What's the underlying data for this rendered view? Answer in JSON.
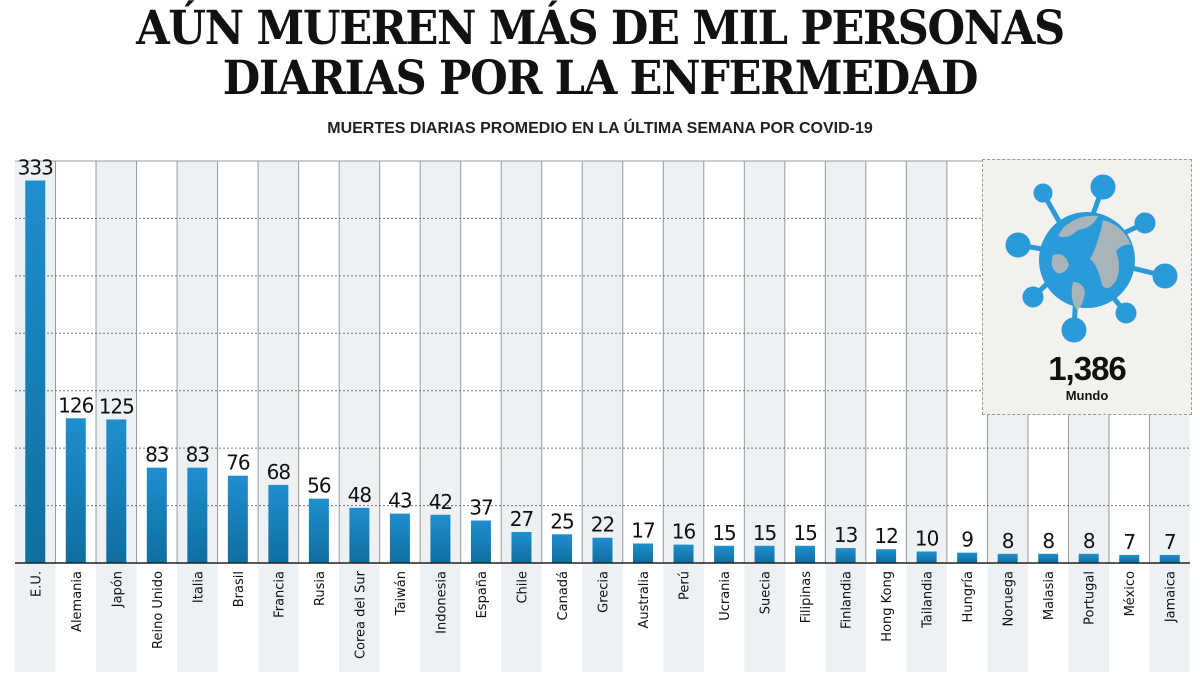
{
  "title_line1": "AÚN MUEREN MÁS DE MIL PERSONAS",
  "title_line2": "DIARIAS POR LA ENFERMEDAD",
  "world": {
    "value": "1,386",
    "label": "Mundo",
    "icon": "coronavirus-globe-icon"
  },
  "colors": {
    "bar": "#1f8fcf",
    "bar_dark": "#0f6e9f",
    "shade": "#edf1f4",
    "world_box": "#f3f1ed"
  },
  "chart_data": {
    "type": "bar",
    "title": "MUERTES DIARIAS PROMEDIO EN LA ÚLTIMA SEMANA POR COVID-19",
    "categories": [
      "E.U.",
      "Alemania",
      "Japón",
      "Reino Unido",
      "Italia",
      "Brasil",
      "Francia",
      "Rusia",
      "Corea del Sur",
      "Taiwán",
      "Indonesia",
      "España",
      "Chile",
      "Canadá",
      "Grecia",
      "Australia",
      "Perú",
      "Ucrania",
      "Suecia",
      "Filipinas",
      "Finlandia",
      "Hong Kong",
      "Tailandia",
      "Hungría",
      "Noruega",
      "Malasia",
      "Portugal",
      "México",
      "Jamaica"
    ],
    "values": [
      333,
      126,
      125,
      83,
      83,
      76,
      68,
      56,
      48,
      43,
      42,
      37,
      27,
      25,
      22,
      17,
      16,
      15,
      15,
      15,
      13,
      12,
      10,
      9,
      8,
      8,
      8,
      7,
      7
    ],
    "ylim": [
      0,
      350
    ],
    "grid": true,
    "grid_step": 50,
    "data_labels": true
  }
}
